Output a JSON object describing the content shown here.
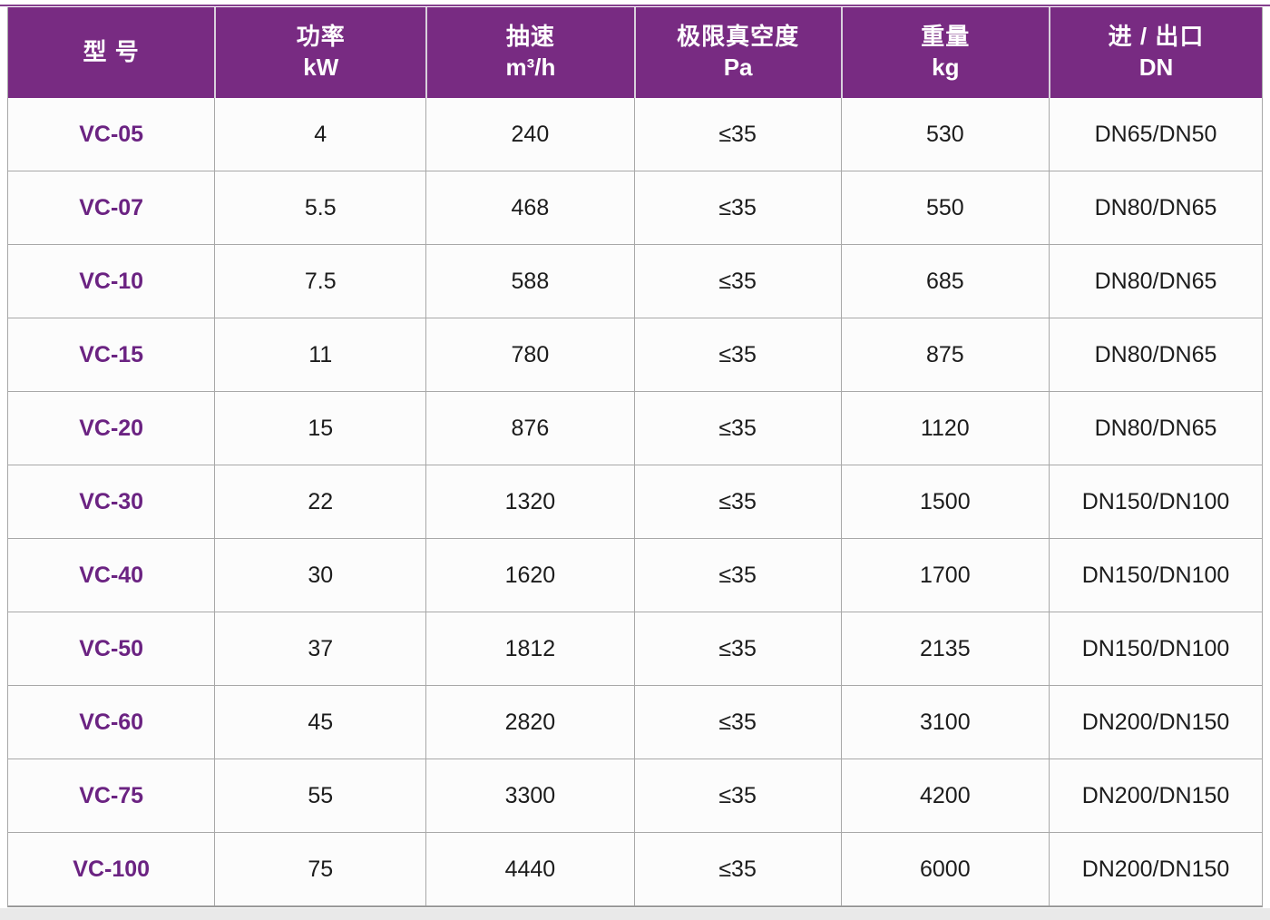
{
  "theme": {
    "header_bg": "#782b82",
    "header_text": "#ffffff",
    "model_color": "#6b2382",
    "body_text": "#1c1c1c",
    "grid_line": "#a8a8a8",
    "row_bg": "#fcfcfc"
  },
  "table": {
    "columns": [
      {
        "title": "型  号",
        "unit": ""
      },
      {
        "title": "功率",
        "unit": "kW"
      },
      {
        "title": "抽速",
        "unit": "m³/h"
      },
      {
        "title": "极限真空度",
        "unit": "Pa"
      },
      {
        "title": "重量",
        "unit": "kg"
      },
      {
        "title": "进 / 出口",
        "unit": "DN"
      }
    ],
    "rows": [
      {
        "model": "VC-05",
        "power": "4",
        "speed": "240",
        "vacuum": "≤35",
        "weight": "530",
        "ports": "DN65/DN50"
      },
      {
        "model": "VC-07",
        "power": "5.5",
        "speed": "468",
        "vacuum": "≤35",
        "weight": "550",
        "ports": "DN80/DN65"
      },
      {
        "model": "VC-10",
        "power": "7.5",
        "speed": "588",
        "vacuum": "≤35",
        "weight": "685",
        "ports": "DN80/DN65"
      },
      {
        "model": "VC-15",
        "power": "11",
        "speed": "780",
        "vacuum": "≤35",
        "weight": "875",
        "ports": "DN80/DN65"
      },
      {
        "model": "VC-20",
        "power": "15",
        "speed": "876",
        "vacuum": "≤35",
        "weight": "1120",
        "ports": "DN80/DN65"
      },
      {
        "model": "VC-30",
        "power": "22",
        "speed": "1320",
        "vacuum": "≤35",
        "weight": "1500",
        "ports": "DN150/DN100"
      },
      {
        "model": "VC-40",
        "power": "30",
        "speed": "1620",
        "vacuum": "≤35",
        "weight": "1700",
        "ports": "DN150/DN100"
      },
      {
        "model": "VC-50",
        "power": "37",
        "speed": "1812",
        "vacuum": "≤35",
        "weight": "2135",
        "ports": "DN150/DN100"
      },
      {
        "model": "VC-60",
        "power": "45",
        "speed": "2820",
        "vacuum": "≤35",
        "weight": "3100",
        "ports": "DN200/DN150"
      },
      {
        "model": "VC-75",
        "power": "55",
        "speed": "3300",
        "vacuum": "≤35",
        "weight": "4200",
        "ports": "DN200/DN150"
      },
      {
        "model": "VC-100",
        "power": "75",
        "speed": "4440",
        "vacuum": "≤35",
        "weight": "6000",
        "ports": "DN200/DN150"
      }
    ]
  }
}
